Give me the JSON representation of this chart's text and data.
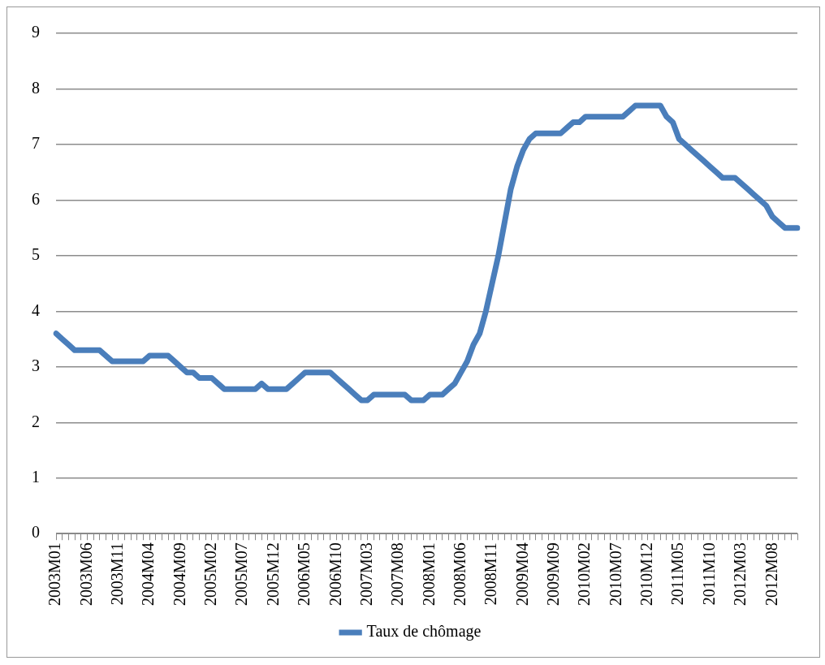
{
  "chart_data": {
    "type": "line",
    "categories": [
      "2003M01",
      null,
      null,
      null,
      null,
      "2003M06",
      null,
      null,
      null,
      null,
      "2003M11",
      null,
      null,
      null,
      null,
      "2004M04",
      null,
      null,
      null,
      null,
      "2004M09",
      null,
      null,
      null,
      null,
      "2005M02",
      null,
      null,
      null,
      null,
      "2005M07",
      null,
      null,
      null,
      null,
      "2005M12",
      null,
      null,
      null,
      null,
      "2006M05",
      null,
      null,
      null,
      null,
      "2006M10",
      null,
      null,
      null,
      null,
      "2007M03",
      null,
      null,
      null,
      null,
      "2007M08",
      null,
      null,
      null,
      null,
      "2008M01",
      null,
      null,
      null,
      null,
      "2008M06",
      null,
      null,
      null,
      null,
      "2008M11",
      null,
      null,
      null,
      null,
      "2009M04",
      null,
      null,
      null,
      null,
      "2009M09",
      null,
      null,
      null,
      null,
      "2010M02",
      null,
      null,
      null,
      null,
      "2010M07",
      null,
      null,
      null,
      null,
      "2010M12",
      null,
      null,
      null,
      null,
      "2011M05",
      null,
      null,
      null,
      null,
      "2011M10",
      null,
      null,
      null,
      null,
      "2012M03",
      null,
      null,
      null,
      null,
      "2012M08",
      null,
      null,
      null,
      null
    ],
    "series": [
      {
        "name": "Taux de chômage",
        "color": "#4a7ebb",
        "values": [
          3.6,
          3.5,
          3.4,
          3.3,
          3.3,
          3.3,
          3.3,
          3.3,
          3.2,
          3.1,
          3.1,
          3.1,
          3.1,
          3.1,
          3.1,
          3.2,
          3.2,
          3.2,
          3.2,
          3.1,
          3.0,
          2.9,
          2.9,
          2.8,
          2.8,
          2.8,
          2.7,
          2.6,
          2.6,
          2.6,
          2.6,
          2.6,
          2.6,
          2.7,
          2.6,
          2.6,
          2.6,
          2.6,
          2.7,
          2.8,
          2.9,
          2.9,
          2.9,
          2.9,
          2.9,
          2.8,
          2.7,
          2.6,
          2.5,
          2.4,
          2.4,
          2.5,
          2.5,
          2.5,
          2.5,
          2.5,
          2.5,
          2.4,
          2.4,
          2.4,
          2.5,
          2.5,
          2.5,
          2.6,
          2.7,
          2.9,
          3.1,
          3.4,
          3.6,
          4.0,
          4.5,
          5.0,
          5.6,
          6.2,
          6.6,
          6.9,
          7.1,
          7.2,
          7.2,
          7.2,
          7.2,
          7.2,
          7.3,
          7.4,
          7.4,
          7.5,
          7.5,
          7.5,
          7.5,
          7.5,
          7.5,
          7.5,
          7.6,
          7.7,
          7.7,
          7.7,
          7.7,
          7.7,
          7.5,
          7.4,
          7.1,
          7.0,
          6.9,
          6.8,
          6.7,
          6.6,
          6.5,
          6.4,
          6.4,
          6.4,
          6.3,
          6.2,
          6.1,
          6.0,
          5.9,
          5.7,
          5.6,
          5.5,
          5.5,
          5.5
        ]
      }
    ],
    "ylim": [
      0,
      9
    ],
    "yticks": [
      0,
      1,
      2,
      3,
      4,
      5,
      6,
      7,
      8,
      9
    ],
    "grid": "y",
    "legend": "bottom",
    "marker": "none",
    "line_style": "solid"
  }
}
